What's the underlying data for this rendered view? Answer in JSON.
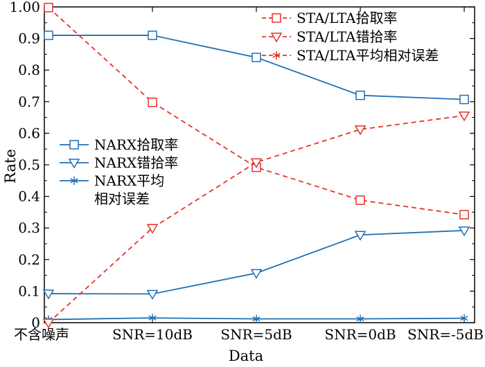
{
  "chart_data": {
    "type": "line",
    "title": "",
    "xlabel": "Data",
    "ylabel": "Rate",
    "categories": [
      "不含噪声",
      "SNR=10dB",
      "SNR=5dB",
      "SNR=0dB",
      "SNR=-5dB"
    ],
    "ylim": [
      0,
      1.0
    ],
    "yticks": [
      0,
      0.1,
      0.2,
      0.3,
      0.4,
      0.5,
      0.6,
      0.7,
      0.8,
      0.9,
      1.0
    ],
    "ytick_labels": [
      "0",
      "0.1",
      "0.2",
      "0.3",
      "0.4",
      "0.5",
      "0.6",
      "0.7",
      "0.8",
      "0.9",
      "1.00"
    ],
    "grid": false,
    "series": [
      {
        "name": "NARX拾取率",
        "color": "#1f6fb4",
        "dash": "solid",
        "marker": "square",
        "values": [
          0.91,
          0.91,
          0.84,
          0.72,
          0.707
        ]
      },
      {
        "name": "NARX错拾率",
        "color": "#1f6fb4",
        "dash": "solid",
        "marker": "triangle-down",
        "values": [
          0.092,
          0.091,
          0.157,
          0.278,
          0.292
        ]
      },
      {
        "name": "NARX平均相对误差",
        "legend_lines": [
          "NARX平均",
          "相对误差"
        ],
        "color": "#1f6fb4",
        "dash": "solid",
        "marker": "star",
        "values": [
          0.01,
          0.015,
          0.012,
          0.012,
          0.014
        ]
      },
      {
        "name": "STA/LTA拾取率",
        "color": "#e8302a",
        "dash": "dashed",
        "marker": "square",
        "values": [
          0.998,
          0.698,
          0.492,
          0.388,
          0.342
        ]
      },
      {
        "name": "STA/LTA错拾率",
        "color": "#e8302a",
        "dash": "dashed",
        "marker": "triangle-down",
        "values": [
          0.0,
          0.3,
          0.508,
          0.612,
          0.656
        ]
      },
      {
        "name": "STA/LTA平均相对误差",
        "color": "#e8302a",
        "dash": "dashed",
        "marker": "star",
        "values": [
          null,
          null,
          null,
          null,
          null
        ]
      }
    ],
    "legends": [
      {
        "placement": "top-right",
        "series": [
          "STA/LTA拾取率",
          "STA/LTA错拾率",
          "STA/LTA平均相对误差"
        ]
      },
      {
        "placement": "center-left",
        "series": [
          "NARX拾取率",
          "NARX错拾率",
          "NARX平均相对误差"
        ]
      }
    ]
  }
}
